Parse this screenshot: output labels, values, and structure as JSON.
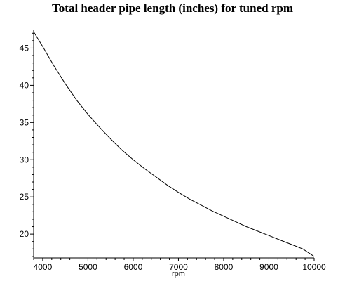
{
  "chart_data": {
    "type": "line",
    "title": "Total header pipe length (inches) for tuned rpm",
    "xlabel": "rpm",
    "ylabel": "",
    "xlim": [
      3800,
      10000
    ],
    "ylim": [
      16.8,
      47.5
    ],
    "xticks": [
      4000,
      5000,
      6000,
      7000,
      8000,
      9000,
      10000
    ],
    "yticks": [
      20,
      25,
      30,
      35,
      40,
      45
    ],
    "grid": false,
    "line_color": "#000000",
    "series": [
      {
        "x": [
          3800,
          4000,
          4250,
          4500,
          4750,
          5000,
          5250,
          5500,
          5750,
          6000,
          6250,
          6500,
          6750,
          7000,
          7250,
          7500,
          7750,
          8000,
          8250,
          8500,
          8750,
          9000,
          9250,
          9500,
          9750,
          10000
        ],
        "y": [
          47.2,
          45.2,
          42.6,
          40.2,
          38.0,
          36.1,
          34.4,
          32.8,
          31.3,
          30.0,
          28.8,
          27.7,
          26.6,
          25.6,
          24.7,
          23.9,
          23.1,
          22.4,
          21.7,
          21.0,
          20.4,
          19.8,
          19.2,
          18.6,
          18.0,
          17.0
        ]
      }
    ]
  }
}
